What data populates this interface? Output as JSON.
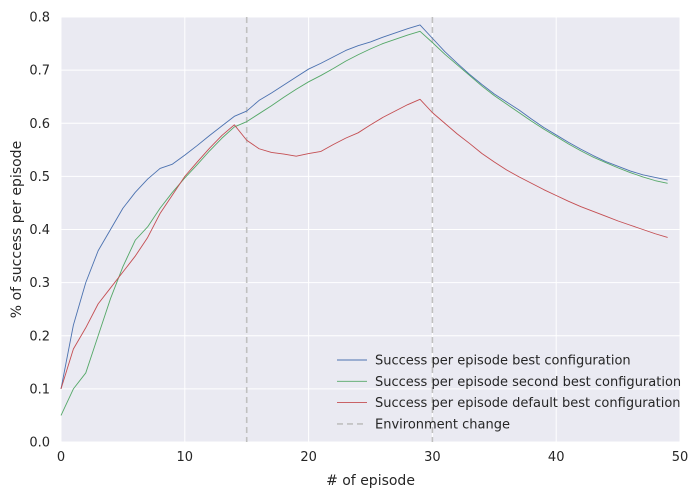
{
  "chart_data": {
    "type": "line",
    "title": "",
    "xlabel": "# of episode",
    "ylabel": "% of success per episode",
    "xlim": [
      0,
      50
    ],
    "ylim": [
      0,
      0.8
    ],
    "xticks": [
      0,
      10,
      20,
      30,
      40,
      50
    ],
    "xtick_labels": [
      "0",
      "10",
      "20",
      "30",
      "40",
      "50"
    ],
    "yticks": [
      0.0,
      0.1,
      0.2,
      0.3,
      0.4,
      0.5,
      0.6,
      0.7,
      0.8
    ],
    "ytick_labels": [
      "0.0",
      "0.1",
      "0.2",
      "0.3",
      "0.4",
      "0.5",
      "0.6",
      "0.7",
      "0.8"
    ],
    "grid": true,
    "legend_position": "lower-right",
    "x": [
      0,
      1,
      2,
      3,
      4,
      5,
      6,
      7,
      8,
      9,
      10,
      11,
      12,
      13,
      14,
      15,
      16,
      17,
      18,
      19,
      20,
      21,
      22,
      23,
      24,
      25,
      26,
      27,
      28,
      29,
      30,
      31,
      32,
      33,
      34,
      35,
      36,
      37,
      38,
      39,
      40,
      41,
      42,
      43,
      44,
      45,
      46,
      47,
      48,
      49
    ],
    "series": [
      {
        "name": "Success per episode best configuration",
        "color": "#4c72b0",
        "values": [
          0.1,
          0.22,
          0.3,
          0.36,
          0.4,
          0.44,
          0.47,
          0.495,
          0.515,
          0.523,
          0.54,
          0.558,
          0.577,
          0.595,
          0.613,
          0.623,
          0.643,
          0.657,
          0.672,
          0.687,
          0.702,
          0.713,
          0.725,
          0.737,
          0.746,
          0.753,
          0.762,
          0.77,
          0.778,
          0.785,
          0.76,
          0.735,
          0.713,
          0.692,
          0.673,
          0.655,
          0.64,
          0.625,
          0.608,
          0.592,
          0.578,
          0.564,
          0.551,
          0.539,
          0.528,
          0.519,
          0.51,
          0.503,
          0.498,
          0.493
        ]
      },
      {
        "name": "Success per episode second best configuration",
        "color": "#55a868",
        "values": [
          0.05,
          0.1,
          0.13,
          0.2,
          0.27,
          0.33,
          0.38,
          0.405,
          0.44,
          0.47,
          0.497,
          0.522,
          0.548,
          0.572,
          0.593,
          0.603,
          0.618,
          0.633,
          0.649,
          0.664,
          0.678,
          0.69,
          0.703,
          0.717,
          0.729,
          0.74,
          0.75,
          0.758,
          0.766,
          0.773,
          0.752,
          0.73,
          0.71,
          0.69,
          0.67,
          0.652,
          0.636,
          0.62,
          0.604,
          0.589,
          0.575,
          0.561,
          0.548,
          0.536,
          0.526,
          0.516,
          0.507,
          0.499,
          0.492,
          0.487
        ]
      },
      {
        "name": "Success per episode default best configuration",
        "color": "#c44e52",
        "values": [
          0.1,
          0.175,
          0.215,
          0.26,
          0.29,
          0.32,
          0.35,
          0.385,
          0.43,
          0.465,
          0.5,
          0.527,
          0.553,
          0.577,
          0.597,
          0.568,
          0.552,
          0.545,
          0.542,
          0.538,
          0.543,
          0.547,
          0.56,
          0.572,
          0.582,
          0.597,
          0.611,
          0.623,
          0.635,
          0.645,
          0.62,
          0.6,
          0.58,
          0.562,
          0.543,
          0.527,
          0.512,
          0.499,
          0.487,
          0.475,
          0.464,
          0.453,
          0.443,
          0.434,
          0.425,
          0.416,
          0.408,
          0.4,
          0.392,
          0.385
        ]
      }
    ],
    "vlines": [
      {
        "x": 15,
        "name": "Environment change",
        "color": "#c0c0c0",
        "style": "dashed"
      },
      {
        "x": 30,
        "name": "Environment change",
        "color": "#c0c0c0",
        "style": "dashed"
      }
    ],
    "legend": [
      {
        "label": "Success per episode best configuration",
        "color": "#4c72b0",
        "style": "solid"
      },
      {
        "label": "Success per episode second best configuration",
        "color": "#55a868",
        "style": "solid"
      },
      {
        "label": "Success per episode default best configuration",
        "color": "#c44e52",
        "style": "solid"
      },
      {
        "label": "Environment change",
        "color": "#c0c0c0",
        "style": "dashed"
      }
    ],
    "colors": {
      "plot_background": "#eaeaf2",
      "grid": "#ffffff"
    }
  }
}
